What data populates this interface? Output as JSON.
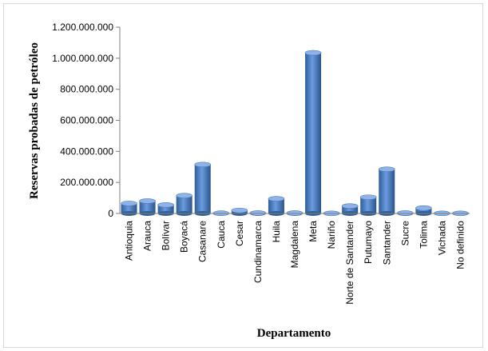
{
  "chart_data": {
    "type": "bar",
    "ylabel": "Reservas probadas de petróleo",
    "xlabel": "Departamento",
    "ylim": [
      0,
      1200000000
    ],
    "yticks": [
      0,
      200000000,
      400000000,
      600000000,
      800000000,
      1000000000,
      1200000000
    ],
    "ytick_labels": [
      "0",
      "200.000.000",
      "400.000.000",
      "600.000.000",
      "800.000.000",
      "1.000.000.000",
      "1.200.000.000"
    ],
    "grid": false,
    "style": "3d-cylinder",
    "bar_color": "#4a7ebb",
    "categories": [
      "Antioquia",
      "Arauca",
      "Bolívar",
      "Boyacá",
      "Casanare",
      "Cauca",
      "Cesar",
      "Cundinamarca",
      "Huila",
      "Magdalena",
      "Meta",
      "Nariño",
      "Norte de Santander",
      "Putumayo",
      "Santander",
      "Sucre",
      "Tolima",
      "Vichada",
      "No definido"
    ],
    "values": [
      65000000,
      80000000,
      55000000,
      115000000,
      315000000,
      2000000,
      20000000,
      3000000,
      95000000,
      3000000,
      1035000000,
      1000000,
      48000000,
      105000000,
      285000000,
      3000000,
      35000000,
      1000000,
      1000000
    ]
  }
}
